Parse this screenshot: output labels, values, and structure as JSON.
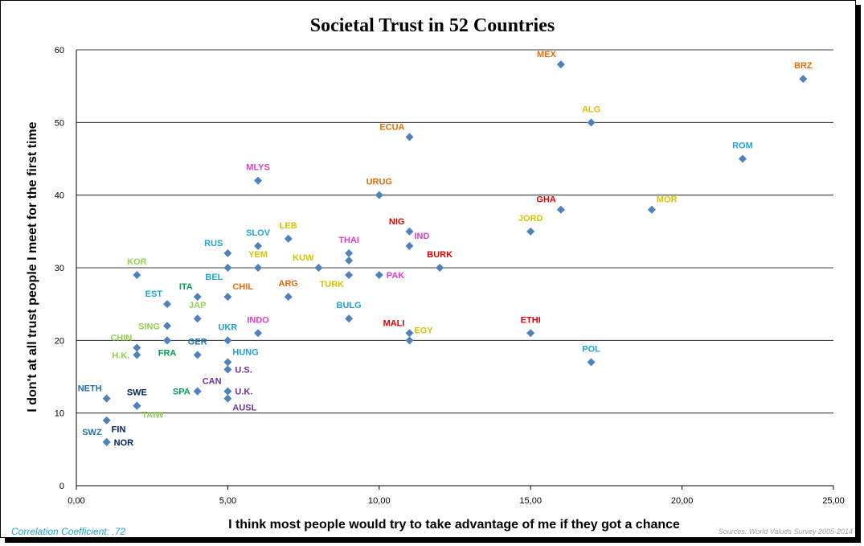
{
  "chart_data": {
    "type": "scatter",
    "title": "Societal Trust in 52 Countries",
    "xlabel": "I think most people would try to take advantage of me if they got a chance",
    "ylabel": "I don't at all trust people I meet for the first time",
    "xlim": [
      0,
      25
    ],
    "ylim": [
      0,
      60
    ],
    "x_ticks": [
      "0,00",
      "5,00",
      "10,00",
      "15,00",
      "20,00",
      "25,00"
    ],
    "y_ticks": [
      "0",
      "10",
      "20",
      "30",
      "40",
      "50",
      "60"
    ],
    "marker_color": "#4f81bd",
    "points": [
      {
        "label": "MEX",
        "x": 16,
        "y": 58,
        "color": "#e46c0a",
        "pos": "nw"
      },
      {
        "label": "BRZ",
        "x": 24,
        "y": 56,
        "color": "#e46c0a",
        "pos": "n"
      },
      {
        "label": "ALG",
        "x": 17,
        "y": 50,
        "color": "#d4c400",
        "pos": "n"
      },
      {
        "label": "ECUA",
        "x": 11,
        "y": 48,
        "color": "#e46c0a",
        "pos": "nw"
      },
      {
        "label": "ROM",
        "x": 22,
        "y": 45,
        "color": "#1fa3d6",
        "pos": "n"
      },
      {
        "label": "MLYS",
        "x": 6,
        "y": 42,
        "color": "#e03ec2",
        "pos": "n"
      },
      {
        "label": "URUG",
        "x": 10,
        "y": 40,
        "color": "#e46c0a",
        "pos": "n"
      },
      {
        "label": "GHA",
        "x": 16,
        "y": 38,
        "color": "#e00000",
        "pos": "nw"
      },
      {
        "label": "MOR",
        "x": 19,
        "y": 38,
        "color": "#d4c400",
        "pos": "ne"
      },
      {
        "label": "JORD",
        "x": 15,
        "y": 35,
        "color": "#d4c400",
        "pos": "n"
      },
      {
        "label": "NIG",
        "x": 11,
        "y": 35,
        "color": "#e00000",
        "pos": "nw"
      },
      {
        "label": "LEB",
        "x": 7,
        "y": 34,
        "color": "#d4c400",
        "pos": "n"
      },
      {
        "label": "IND",
        "x": 11,
        "y": 33,
        "color": "#e03ec2",
        "pos": "ne"
      },
      {
        "label": "SLOV",
        "x": 6,
        "y": 33,
        "color": "#1fa3d6",
        "pos": "n"
      },
      {
        "label": "THAI",
        "x": 9,
        "y": 32,
        "color": "#e03ec2",
        "pos": "n"
      },
      {
        "label": "RUS",
        "x": 5,
        "y": 32,
        "color": "#1fa3d6",
        "pos": "nw"
      },
      {
        "label": "BURK",
        "x": 12,
        "y": 30,
        "color": "#e00000",
        "pos": "n"
      },
      {
        "label": "KUW",
        "x": 8,
        "y": 30,
        "color": "#d4c400",
        "pos": "nw"
      },
      {
        "label": "YEM",
        "x": 6,
        "y": 30,
        "color": "#d4c400",
        "pos": "n"
      },
      {
        "label": "BEL",
        "x": 5,
        "y": 30,
        "color": "#1fa3d6",
        "pos": "sw"
      },
      {
        "label": "",
        "x": 9,
        "y": 31,
        "color": "#1fa3d6",
        "pos": "n"
      },
      {
        "label": "TURK",
        "x": 9,
        "y": 29,
        "color": "#d4c400",
        "pos": "sw"
      },
      {
        "label": "PAK",
        "x": 10,
        "y": 29,
        "color": "#e03ec2",
        "pos": "e"
      },
      {
        "label": "KOR",
        "x": 2,
        "y": 29,
        "color": "#92d050",
        "pos": "n"
      },
      {
        "label": "ARG",
        "x": 7,
        "y": 26,
        "color": "#e46c0a",
        "pos": "n"
      },
      {
        "label": "ITA",
        "x": 4,
        "y": 26,
        "color": "#00a050",
        "pos": "nw"
      },
      {
        "label": "CHIL",
        "x": 5,
        "y": 26,
        "color": "#e46c0a",
        "pos": "ne"
      },
      {
        "label": "EST",
        "x": 3,
        "y": 25,
        "color": "#1fa3d6",
        "pos": "nw"
      },
      {
        "label": "BULG",
        "x": 9,
        "y": 23,
        "color": "#1fa3d6",
        "pos": "n"
      },
      {
        "label": "JAP",
        "x": 4,
        "y": 23,
        "color": "#92d050",
        "pos": "n"
      },
      {
        "label": "SING",
        "x": 3,
        "y": 22,
        "color": "#92d050",
        "pos": "w"
      },
      {
        "label": "INDO",
        "x": 6,
        "y": 21,
        "color": "#e03ec2",
        "pos": "n"
      },
      {
        "label": "UKR",
        "x": 5,
        "y": 20,
        "color": "#1fa3d6",
        "pos": "n"
      },
      {
        "label": "MALI",
        "x": 11,
        "y": 21,
        "color": "#e00000",
        "pos": "nw"
      },
      {
        "label": "EGY",
        "x": 11,
        "y": 20,
        "color": "#d4c400",
        "pos": "ne"
      },
      {
        "label": "ETHI",
        "x": 15,
        "y": 21,
        "color": "#e00000",
        "pos": "n"
      },
      {
        "label": "CHIN",
        "x": 2,
        "y": 19,
        "color": "#92d050",
        "pos": "nw"
      },
      {
        "label": "",
        "x": 3,
        "y": 20,
        "color": "#92d050",
        "pos": "n"
      },
      {
        "label": "H.K.",
        "x": 2,
        "y": 18,
        "color": "#92d050",
        "pos": "w"
      },
      {
        "label": "FRA",
        "x": 3,
        "y": 20,
        "color": "#00a050",
        "pos": "s"
      },
      {
        "label": "GER",
        "x": 4,
        "y": 18,
        "color": "#1f6fb0",
        "pos": "n"
      },
      {
        "label": "POL",
        "x": 17,
        "y": 17,
        "color": "#1fa3d6",
        "pos": "n"
      },
      {
        "label": "HUNG",
        "x": 5,
        "y": 17,
        "color": "#1fa3d6",
        "pos": "ne"
      },
      {
        "label": "U.S.",
        "x": 5,
        "y": 16,
        "color": "#7030a0",
        "pos": "e"
      },
      {
        "label": "CAN",
        "x": 4,
        "y": 13,
        "color": "#7030a0",
        "pos": "ne"
      },
      {
        "label": "SPA",
        "x": 4,
        "y": 13,
        "color": "#00a050",
        "pos": "w"
      },
      {
        "label": "U.K.",
        "x": 5,
        "y": 13,
        "color": "#7030a0",
        "pos": "e"
      },
      {
        "label": "AUSL",
        "x": 5,
        "y": 12,
        "color": "#7030a0",
        "pos": "se"
      },
      {
        "label": "NETH",
        "x": 1,
        "y": 12,
        "color": "#1f6fb0",
        "pos": "nw"
      },
      {
        "label": "SWE",
        "x": 2,
        "y": 11,
        "color": "#002060",
        "pos": "n"
      },
      {
        "label": "TAIW",
        "x": 2,
        "y": 11,
        "color": "#92d050",
        "pos": "se"
      },
      {
        "label": "FIN",
        "x": 1,
        "y": 9,
        "color": "#002060",
        "pos": "se"
      },
      {
        "label": "SWZ",
        "x": 1,
        "y": 6,
        "color": "#1f6fb0",
        "pos": "nw"
      },
      {
        "label": "NOR",
        "x": 1,
        "y": 6,
        "color": "#002060",
        "pos": "e"
      }
    ]
  },
  "footer": {
    "correlation": "Correlation Coefficient: .72",
    "correlation_color": "#1fa3d6",
    "source": "Sources: World Values Survey 2005-2014",
    "source_color": "#a0a0a0"
  }
}
